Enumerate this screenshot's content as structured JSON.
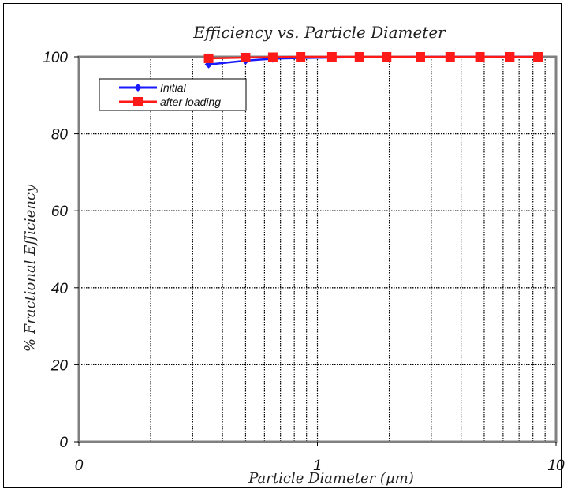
{
  "chart_data": {
    "type": "line",
    "title": "Efficiency vs. Particle Diameter",
    "xlabel": "Particle Diameter (µm)",
    "ylabel": "% Fractional Efficiency",
    "xscale": "log",
    "xlim": [
      0.1,
      10
    ],
    "ylim": [
      0,
      100
    ],
    "x_tick_labels": [
      "0",
      "1",
      "10"
    ],
    "y_tick_labels": [
      "0",
      "20",
      "40",
      "60",
      "80",
      "100"
    ],
    "grid": true,
    "legend_position": "top-left",
    "series": [
      {
        "name": "Initial",
        "color": "#1a1aff",
        "marker": "diamond",
        "x": [
          0.35,
          0.5,
          0.65,
          0.85,
          1.15,
          1.5,
          1.95,
          2.7,
          3.6,
          4.8,
          6.4,
          8.4
        ],
        "y": [
          98.0,
          99.0,
          99.5,
          99.7,
          99.8,
          99.9,
          99.9,
          100,
          100,
          100,
          100,
          100
        ]
      },
      {
        "name": "after loading",
        "color": "#ff1a1a",
        "marker": "square",
        "x": [
          0.35,
          0.5,
          0.65,
          0.85,
          1.15,
          1.5,
          1.95,
          2.7,
          3.6,
          4.8,
          6.4,
          8.4
        ],
        "y": [
          99.6,
          99.8,
          99.9,
          100,
          100,
          100,
          100,
          100,
          100,
          100,
          100,
          100
        ]
      }
    ]
  }
}
